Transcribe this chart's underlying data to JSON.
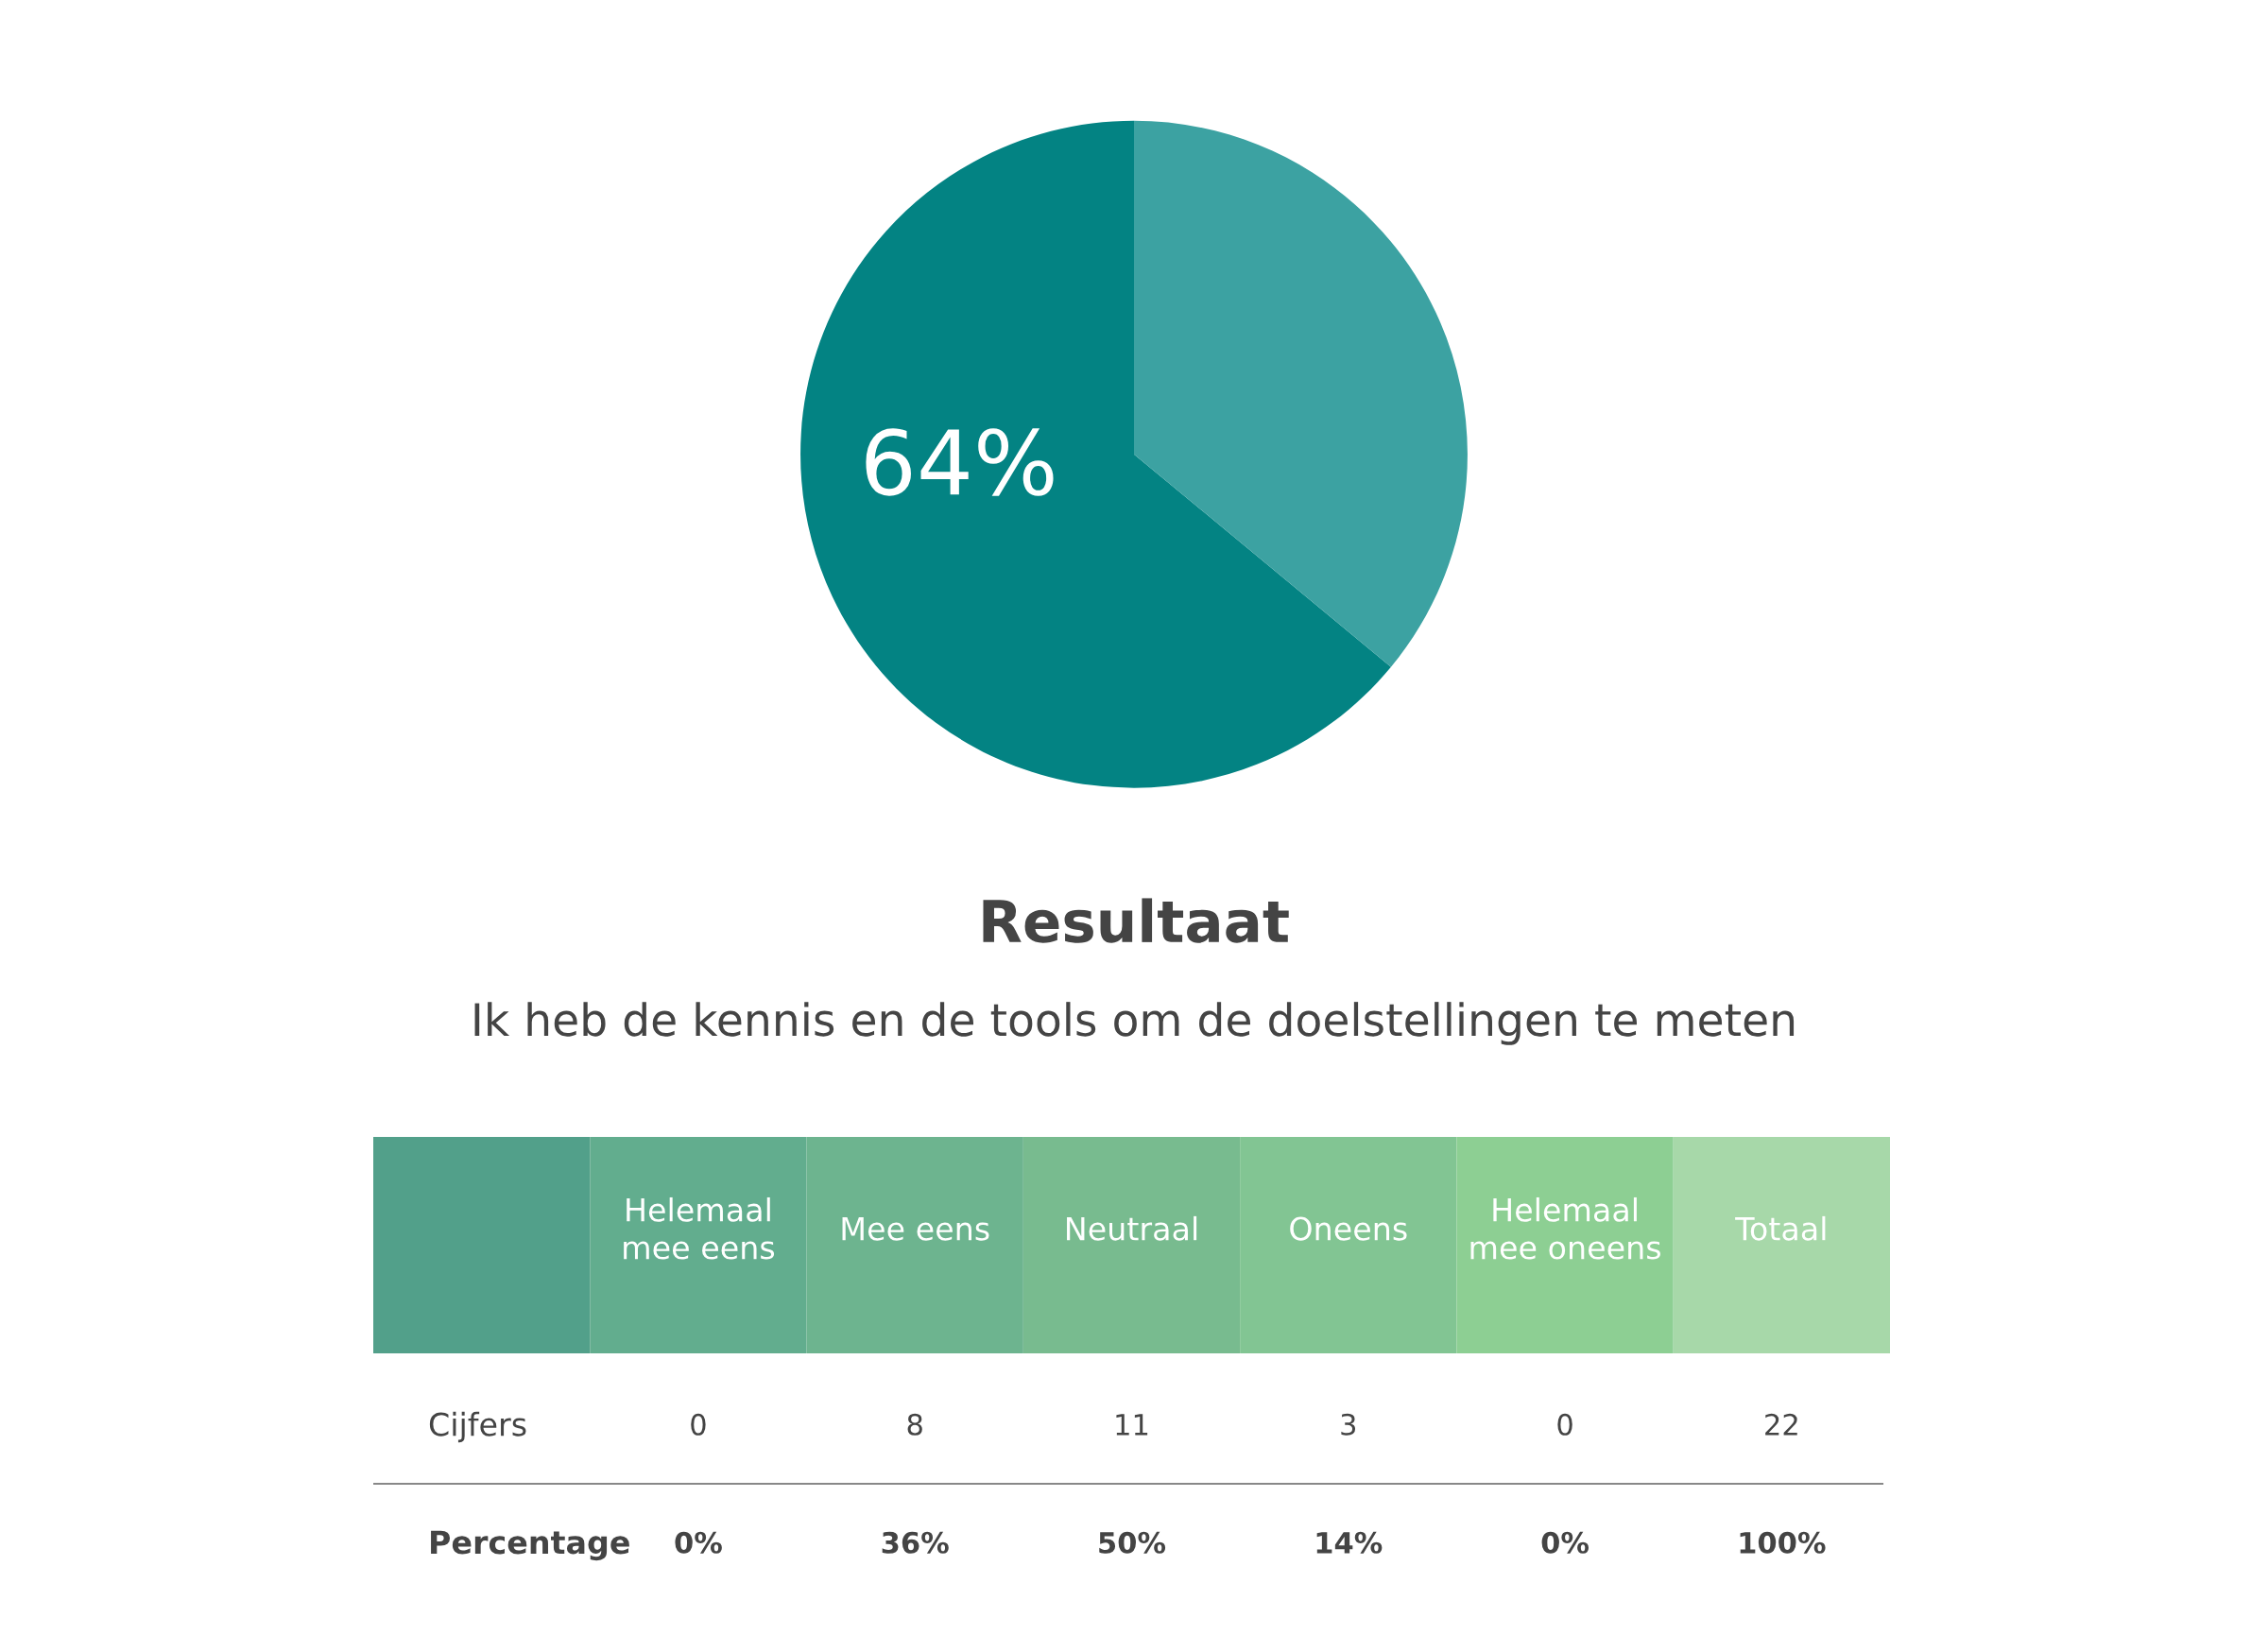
{
  "chart_data": [
    {
      "type": "pie",
      "categories": [
        null,
        null
      ],
      "values": [
        64,
        36
      ],
      "colors": [
        "#038383",
        "#3ca2a2"
      ],
      "value_labels": [
        "64%",
        null
      ]
    },
    {
      "type": "other",
      "title": "Resultaat",
      "subtitle": "Ik heb de kennis en de tools om de doelstellingen te meten",
      "categories": [
        null,
        "Helemaal\nmee eens",
        "Mee eens",
        "Neutraal",
        "Oneens",
        "Helemaal\nmee oneens",
        "Totaal"
      ],
      "colors": [
        "#52a08a",
        "#62ad8e",
        "#6db48f",
        "#78bb8f",
        "#82c593",
        "#8dcf93",
        "#a7d8a9"
      ],
      "y_categories": [
        "Cijfers",
        "Percentage"
      ],
      "cell_labels": [
        [
          "0",
          "8",
          "11",
          "3",
          "0",
          "22"
        ],
        [
          "0%",
          "36%",
          "50%",
          "14%",
          "0%",
          "100%"
        ]
      ]
    }
  ]
}
